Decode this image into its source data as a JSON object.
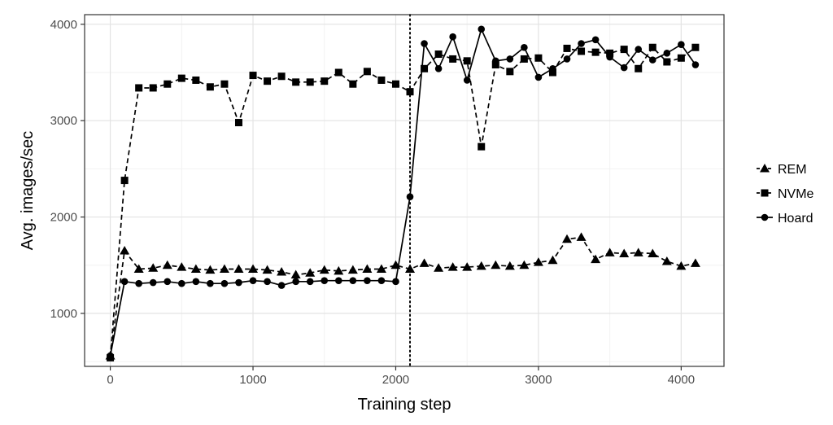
{
  "chart_data": {
    "type": "line",
    "title": "",
    "xlabel": "Training step",
    "ylabel": "Avg. images/sec",
    "xlim": [
      -180,
      4300
    ],
    "ylim": [
      450,
      4100
    ],
    "xticks": [
      0,
      1000,
      2000,
      3000,
      4000
    ],
    "yticks": [
      1000,
      2000,
      3000,
      4000
    ],
    "grid": true,
    "legend_position": "right",
    "vline": {
      "x": 2100,
      "style": "dotted"
    },
    "series": [
      {
        "name": "REM",
        "marker": "triangle",
        "linestyle": "dashed",
        "x": [
          0,
          100,
          200,
          300,
          400,
          500,
          600,
          700,
          800,
          900,
          1000,
          1100,
          1200,
          1300,
          1400,
          1500,
          1600,
          1700,
          1800,
          1900,
          2000,
          2100,
          2200,
          2300,
          2400,
          2500,
          2600,
          2700,
          2800,
          2900,
          3000,
          3100,
          3200,
          3300,
          3400,
          3500,
          3600,
          3700,
          3800,
          3900,
          4000,
          4100
        ],
        "values": [
          560,
          1650,
          1460,
          1470,
          1500,
          1480,
          1460,
          1450,
          1460,
          1460,
          1460,
          1450,
          1430,
          1400,
          1420,
          1450,
          1440,
          1450,
          1460,
          1460,
          1500,
          1460,
          1520,
          1470,
          1480,
          1480,
          1490,
          1500,
          1490,
          1500,
          1530,
          1550,
          1770,
          1790,
          1560,
          1630,
          1620,
          1630,
          1620,
          1540,
          1490,
          1520
        ]
      },
      {
        "name": "NVMe",
        "marker": "square",
        "linestyle": "dashed",
        "x": [
          0,
          100,
          200,
          300,
          400,
          500,
          600,
          700,
          800,
          900,
          1000,
          1100,
          1200,
          1300,
          1400,
          1500,
          1600,
          1700,
          1800,
          1900,
          2000,
          2100,
          2200,
          2300,
          2400,
          2500,
          2600,
          2700,
          2800,
          2900,
          3000,
          3100,
          3200,
          3300,
          3400,
          3500,
          3600,
          3700,
          3800,
          3900,
          4000,
          4100
        ],
        "values": [
          540,
          2380,
          3340,
          3340,
          3380,
          3440,
          3420,
          3350,
          3380,
          2980,
          3470,
          3410,
          3460,
          3400,
          3400,
          3410,
          3500,
          3380,
          3510,
          3420,
          3380,
          3300,
          3540,
          3690,
          3640,
          3620,
          2730,
          3580,
          3510,
          3640,
          3650,
          3500,
          3750,
          3720,
          3710,
          3700,
          3740,
          3540,
          3760,
          3610,
          3650,
          3760
        ]
      },
      {
        "name": "Hoard",
        "marker": "circle",
        "linestyle": "solid",
        "x": [
          0,
          100,
          200,
          300,
          400,
          500,
          600,
          700,
          800,
          900,
          1000,
          1100,
          1200,
          1300,
          1400,
          1500,
          1600,
          1700,
          1800,
          1900,
          2000,
          2100,
          2200,
          2300,
          2400,
          2500,
          2600,
          2700,
          2800,
          2900,
          3000,
          3100,
          3200,
          3300,
          3400,
          3500,
          3600,
          3700,
          3800,
          3900,
          4000,
          4100
        ],
        "values": [
          560,
          1330,
          1310,
          1320,
          1330,
          1310,
          1330,
          1310,
          1310,
          1320,
          1340,
          1330,
          1290,
          1330,
          1330,
          1340,
          1340,
          1340,
          1340,
          1340,
          1330,
          2210,
          3800,
          3540,
          3870,
          3420,
          3950,
          3620,
          3640,
          3760,
          3450,
          3540,
          3640,
          3800,
          3840,
          3660,
          3550,
          3740,
          3630,
          3700,
          3790,
          3580
        ]
      }
    ]
  }
}
